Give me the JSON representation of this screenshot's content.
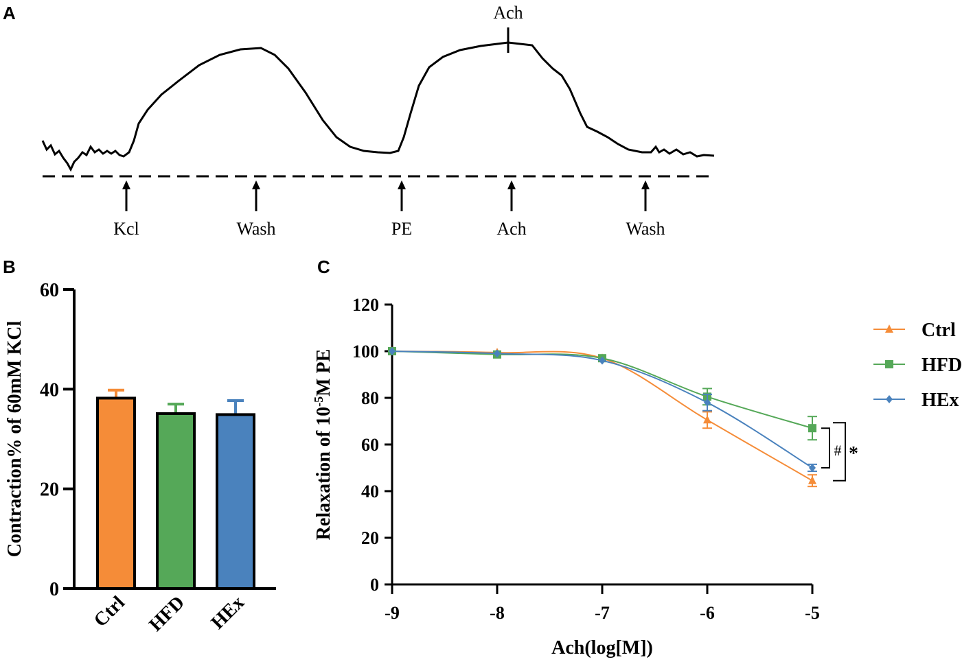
{
  "panels": {
    "a": "A",
    "b": "B",
    "c": "C"
  },
  "trace": {
    "top_marker_label": "Ach",
    "events": [
      "Kcl",
      "Wash",
      "PE",
      "Ach",
      "Wash"
    ]
  },
  "colors": {
    "Ctrl": "#f58c38",
    "HFD": "#55a858",
    "HEx": "#4a82bd"
  },
  "chart_data": [
    {
      "type": "bar",
      "ylabel": "Contraction% of 60mM KCl",
      "ylim": [
        0,
        60
      ],
      "yticks": [
        "0",
        "20",
        "40",
        "60"
      ],
      "categories": [
        "Ctrl",
        "HFD",
        "HEx"
      ],
      "values": [
        38.2,
        35.1,
        34.9
      ],
      "error": [
        1.6,
        1.9,
        2.8
      ]
    },
    {
      "type": "line",
      "xlabel": "Ach(log[M])",
      "ylabel_parts": [
        "Relaxation of 10",
        "-5",
        "M PE"
      ],
      "xlim": [
        -9,
        -5
      ],
      "ylim": [
        0,
        120
      ],
      "xticks": [
        "-9",
        "-8",
        "-7",
        "-6",
        "-5"
      ],
      "yticks": [
        "0",
        "20",
        "40",
        "60",
        "80",
        "100",
        "120"
      ],
      "x": [
        -9,
        -8,
        -7,
        -6,
        -5
      ],
      "series": [
        {
          "name": "Ctrl",
          "marker": "triangle",
          "values": [
            100,
            99.4,
            97,
            70.5,
            44.5
          ],
          "error": [
            0,
            0,
            0,
            3.5,
            2.5
          ]
        },
        {
          "name": "HFD",
          "marker": "square",
          "values": [
            100,
            98.6,
            97,
            80.5,
            67
          ],
          "error": [
            0,
            0,
            0,
            3.5,
            5
          ]
        },
        {
          "name": "HEx",
          "marker": "diamond",
          "values": [
            100,
            99,
            96,
            78,
            50
          ],
          "error": [
            0,
            0,
            0,
            3.5,
            1.5
          ]
        }
      ],
      "annotations": [
        "#",
        "*"
      ],
      "legend": "right"
    }
  ]
}
